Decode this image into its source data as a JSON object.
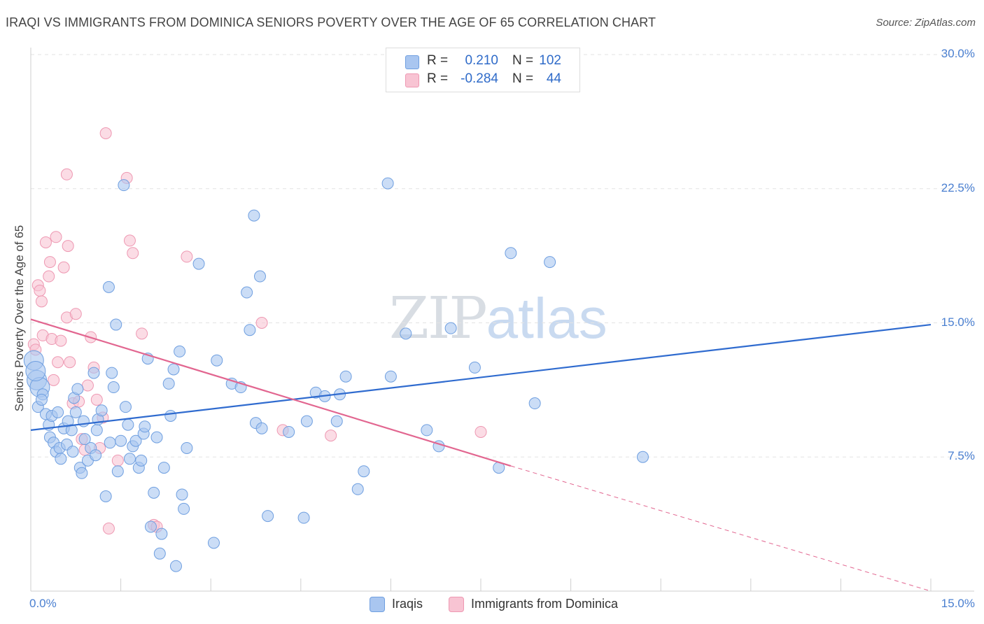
{
  "title": "IRAQI VS IMMIGRANTS FROM DOMINICA SENIORS POVERTY OVER THE AGE OF 65 CORRELATION CHART",
  "source": "Source: ZipAtlas.com",
  "watermark": {
    "zip": "ZIP",
    "atlas": "atlas"
  },
  "legend": {
    "rows": [
      {
        "r_label": "R =",
        "r_value": "0.210",
        "n_label": "N =",
        "n_value": "102",
        "color": "#a9c6f0"
      },
      {
        "r_label": "R =",
        "r_value": "-0.284",
        "n_label": "N =",
        "n_value": "44",
        "color": "#f6b8cb"
      }
    ]
  },
  "bottom_legend": [
    "Iraqis",
    "Immigrants from Dominica"
  ],
  "colors": {
    "blue_fill": "#a9c6f0",
    "blue_stroke": "#6f9fe0",
    "blue_line": "#2f6bcf",
    "pink_fill": "#f8c4d3",
    "pink_stroke": "#ee98b2",
    "pink_line": "#e26690"
  },
  "chart_data": {
    "type": "scatter",
    "title": "IRAQI VS IMMIGRANTS FROM DOMINICA SENIORS POVERTY OVER THE AGE OF 65 CORRELATION CHART",
    "xlabel": "",
    "ylabel": "Seniors Poverty Over the Age of 65",
    "xlim": [
      0,
      15
    ],
    "ylim": [
      0,
      30
    ],
    "x_tick_labels": [
      "0.0%",
      "15.0%"
    ],
    "y_ticks": [
      7.5,
      15.0,
      22.5,
      30.0
    ],
    "y_tick_labels": [
      "7.5%",
      "15.0%",
      "22.5%",
      "30.0%"
    ],
    "grid": "horizontal dashed",
    "series": [
      {
        "name": "Iraqis",
        "r": 0.21,
        "n": 102,
        "trend": [
          [
            0,
            9.0
          ],
          [
            15,
            14.9
          ]
        ],
        "points": [
          [
            0.05,
            12.9
          ],
          [
            0.1,
            11.8
          ],
          [
            0.15,
            11.4
          ],
          [
            0.2,
            11.0
          ],
          [
            0.12,
            10.3
          ],
          [
            0.25,
            9.9
          ],
          [
            0.3,
            9.3
          ],
          [
            0.35,
            9.8
          ],
          [
            0.32,
            8.6
          ],
          [
            0.38,
            8.3
          ],
          [
            0.42,
            7.8
          ],
          [
            0.48,
            8.0
          ],
          [
            0.5,
            7.4
          ],
          [
            0.45,
            10.0
          ],
          [
            0.55,
            9.1
          ],
          [
            0.6,
            8.2
          ],
          [
            0.62,
            9.5
          ],
          [
            0.68,
            9.0
          ],
          [
            0.7,
            7.8
          ],
          [
            0.72,
            10.8
          ],
          [
            0.75,
            10.0
          ],
          [
            0.78,
            11.3
          ],
          [
            0.82,
            6.9
          ],
          [
            0.85,
            6.6
          ],
          [
            0.88,
            9.5
          ],
          [
            0.9,
            8.5
          ],
          [
            0.95,
            7.3
          ],
          [
            1.0,
            8.0
          ],
          [
            1.05,
            12.2
          ],
          [
            1.08,
            7.6
          ],
          [
            1.1,
            9.0
          ],
          [
            1.12,
            9.6
          ],
          [
            1.18,
            10.1
          ],
          [
            1.25,
            5.3
          ],
          [
            1.3,
            17.0
          ],
          [
            1.32,
            8.3
          ],
          [
            1.35,
            12.2
          ],
          [
            1.38,
            11.4
          ],
          [
            1.42,
            14.9
          ],
          [
            1.45,
            6.7
          ],
          [
            1.5,
            8.4
          ],
          [
            1.55,
            22.7
          ],
          [
            1.58,
            10.3
          ],
          [
            1.62,
            9.3
          ],
          [
            1.65,
            7.4
          ],
          [
            1.7,
            8.1
          ],
          [
            1.75,
            8.4
          ],
          [
            1.8,
            6.9
          ],
          [
            1.84,
            7.3
          ],
          [
            1.88,
            8.8
          ],
          [
            1.9,
            9.2
          ],
          [
            1.95,
            13.0
          ],
          [
            2.0,
            3.6
          ],
          [
            2.05,
            5.5
          ],
          [
            2.1,
            8.6
          ],
          [
            2.15,
            2.1
          ],
          [
            2.18,
            3.2
          ],
          [
            2.22,
            6.9
          ],
          [
            2.3,
            11.6
          ],
          [
            2.33,
            9.8
          ],
          [
            2.38,
            12.4
          ],
          [
            2.42,
            1.4
          ],
          [
            2.48,
            13.4
          ],
          [
            2.52,
            5.4
          ],
          [
            2.55,
            4.6
          ],
          [
            2.6,
            8.0
          ],
          [
            2.8,
            18.3
          ],
          [
            3.05,
            2.7
          ],
          [
            3.1,
            12.9
          ],
          [
            3.35,
            11.6
          ],
          [
            3.5,
            11.4
          ],
          [
            3.6,
            16.7
          ],
          [
            3.65,
            14.6
          ],
          [
            3.72,
            21.0
          ],
          [
            3.75,
            9.4
          ],
          [
            3.82,
            17.6
          ],
          [
            3.85,
            9.1
          ],
          [
            3.95,
            4.2
          ],
          [
            4.3,
            8.9
          ],
          [
            4.55,
            4.1
          ],
          [
            4.6,
            9.5
          ],
          [
            4.75,
            11.1
          ],
          [
            4.9,
            10.9
          ],
          [
            5.1,
            9.5
          ],
          [
            5.15,
            11.0
          ],
          [
            5.25,
            12.0
          ],
          [
            5.45,
            5.7
          ],
          [
            5.55,
            6.7
          ],
          [
            5.95,
            22.8
          ],
          [
            6.0,
            12.0
          ],
          [
            6.25,
            14.4
          ],
          [
            6.6,
            9.0
          ],
          [
            6.8,
            8.1
          ],
          [
            7.0,
            14.7
          ],
          [
            7.4,
            12.5
          ],
          [
            7.8,
            6.9
          ],
          [
            8.0,
            18.9
          ],
          [
            8.4,
            10.5
          ],
          [
            8.65,
            18.4
          ],
          [
            10.2,
            7.5
          ],
          [
            0.08,
            12.3
          ],
          [
            0.18,
            10.7
          ]
        ]
      },
      {
        "name": "Immigrants from Dominica",
        "r": -0.284,
        "n": 44,
        "trend": [
          [
            0,
            15.2
          ],
          [
            8.0,
            7.0
          ]
        ],
        "trend_dashed": [
          [
            8.0,
            7.0
          ],
          [
            15,
            0.0
          ]
        ],
        "points": [
          [
            0.05,
            13.8
          ],
          [
            0.08,
            13.5
          ],
          [
            0.12,
            17.1
          ],
          [
            0.15,
            16.8
          ],
          [
            0.18,
            16.2
          ],
          [
            0.2,
            14.3
          ],
          [
            0.25,
            19.5
          ],
          [
            0.3,
            17.6
          ],
          [
            0.32,
            18.4
          ],
          [
            0.35,
            14.1
          ],
          [
            0.38,
            11.8
          ],
          [
            0.42,
            19.8
          ],
          [
            0.45,
            12.8
          ],
          [
            0.5,
            14.0
          ],
          [
            0.55,
            18.1
          ],
          [
            0.6,
            15.3
          ],
          [
            0.62,
            19.3
          ],
          [
            0.65,
            12.8
          ],
          [
            0.7,
            10.5
          ],
          [
            0.75,
            15.5
          ],
          [
            0.8,
            10.6
          ],
          [
            0.85,
            8.5
          ],
          [
            0.9,
            7.9
          ],
          [
            0.95,
            11.5
          ],
          [
            1.0,
            14.2
          ],
          [
            1.05,
            12.5
          ],
          [
            1.1,
            10.7
          ],
          [
            1.15,
            8.0
          ],
          [
            1.2,
            9.7
          ],
          [
            1.25,
            25.6
          ],
          [
            1.3,
            3.5
          ],
          [
            1.45,
            7.3
          ],
          [
            1.6,
            23.1
          ],
          [
            1.65,
            19.6
          ],
          [
            1.7,
            18.9
          ],
          [
            1.85,
            14.4
          ],
          [
            2.05,
            3.7
          ],
          [
            2.1,
            3.6
          ],
          [
            2.6,
            18.7
          ],
          [
            3.85,
            15.0
          ],
          [
            4.2,
            9.0
          ],
          [
            5.0,
            8.7
          ],
          [
            7.5,
            8.9
          ],
          [
            0.6,
            23.3
          ]
        ]
      }
    ]
  }
}
